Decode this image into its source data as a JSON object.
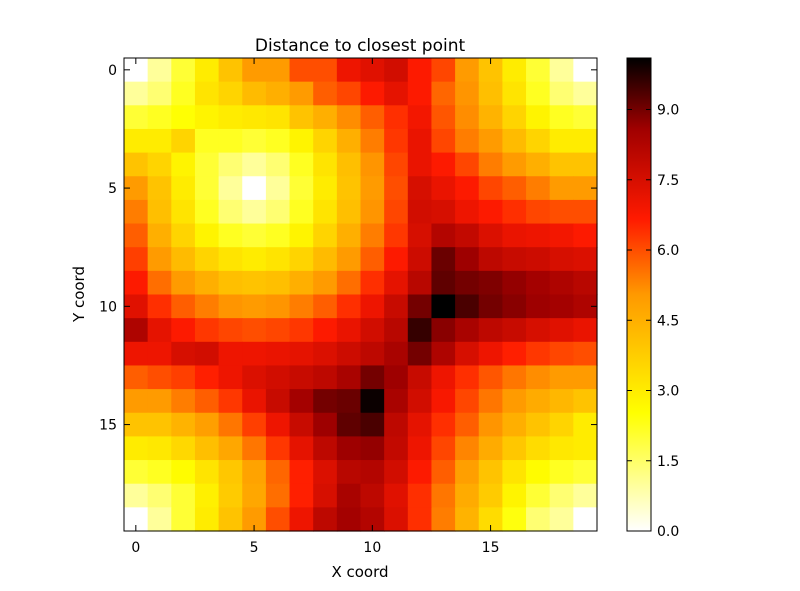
{
  "chart_data": {
    "type": "heatmap",
    "title": "Distance to closest point",
    "xlabel": "X coord",
    "ylabel": "Y coord",
    "rows": 20,
    "cols": 20,
    "xlim": [
      -0.5,
      19.5
    ],
    "ylim": [
      19.5,
      -0.5
    ],
    "x_ticks": [
      0,
      5,
      10,
      15
    ],
    "y_ticks": [
      0,
      5,
      10,
      15
    ],
    "colormap": "hot_r",
    "colorbar": {
      "vmin": 0.0,
      "vmax": 10.1,
      "ticks": [
        0.0,
        1.5,
        3.0,
        4.5,
        6.0,
        7.5,
        9.0
      ],
      "tick_labels": [
        "0.0",
        "1.5",
        "3.0",
        "4.5",
        "6.0",
        "7.5",
        "9.0"
      ]
    },
    "colormap_stops": [
      {
        "v": 0.0,
        "color": "#ffffff"
      },
      {
        "v": 0.25,
        "color": "#ffff00"
      },
      {
        "v": 0.5,
        "color": "#ff9900"
      },
      {
        "v": 0.66,
        "color": "#ff1a00"
      },
      {
        "v": 0.85,
        "color": "#a00000"
      },
      {
        "v": 1.0,
        "color": "#000000"
      }
    ],
    "grid": false,
    "values": [
      [
        0.0,
        1.0,
        2.0,
        3.0,
        4.0,
        5.0,
        5.0,
        6.0,
        6.0,
        7.0,
        7.3,
        7.6,
        6.7,
        6.1,
        5.0,
        4.0,
        3.0,
        2.0,
        1.0,
        0.0
      ],
      [
        1.0,
        1.4,
        2.2,
        3.2,
        3.6,
        4.2,
        4.5,
        5.0,
        5.8,
        6.1,
        6.7,
        7.2,
        6.7,
        5.7,
        5.1,
        4.1,
        3.2,
        2.2,
        1.4,
        1.0
      ],
      [
        2.0,
        2.2,
        2.5,
        2.8,
        3.0,
        3.1,
        3.2,
        4.0,
        4.5,
        5.2,
        5.8,
        6.4,
        6.9,
        5.9,
        5.2,
        4.4,
        3.6,
        2.8,
        2.2,
        2.0
      ],
      [
        3.0,
        3.0,
        3.6,
        2.2,
        2.2,
        2.0,
        2.2,
        2.8,
        3.6,
        4.5,
        5.4,
        6.3,
        7.1,
        6.1,
        5.4,
        5.0,
        4.2,
        3.6,
        3.0,
        3.0
      ],
      [
        4.0,
        3.6,
        2.8,
        2.0,
        1.4,
        1.0,
        1.4,
        2.2,
        3.2,
        4.1,
        5.1,
        6.1,
        7.1,
        6.7,
        6.1,
        5.4,
        5.0,
        4.5,
        4.0,
        4.0
      ],
      [
        5.0,
        4.0,
        3.0,
        2.0,
        1.0,
        0.0,
        1.0,
        2.0,
        3.0,
        4.0,
        5.0,
        6.0,
        7.5,
        7.1,
        6.7,
        6.1,
        5.8,
        5.4,
        5.0,
        5.0
      ],
      [
        5.4,
        4.1,
        3.2,
        2.2,
        1.4,
        1.0,
        1.4,
        2.2,
        3.2,
        4.1,
        5.1,
        6.1,
        7.6,
        7.5,
        7.0,
        6.7,
        6.4,
        6.1,
        6.0,
        6.0
      ],
      [
        5.8,
        4.5,
        3.6,
        2.8,
        2.2,
        2.0,
        2.2,
        2.8,
        3.6,
        4.5,
        5.4,
        6.3,
        7.5,
        8.2,
        7.9,
        7.4,
        7.1,
        7.0,
        6.9,
        6.7
      ],
      [
        6.2,
        5.0,
        4.2,
        3.6,
        3.2,
        3.0,
        3.2,
        3.6,
        4.2,
        5.0,
        5.8,
        6.7,
        7.7,
        9.1,
        8.6,
        8.0,
        7.8,
        7.7,
        7.5,
        7.4
      ],
      [
        6.7,
        5.6,
        5.0,
        4.5,
        4.1,
        4.0,
        4.1,
        4.5,
        5.0,
        5.6,
        6.4,
        7.2,
        8.1,
        9.2,
        9.0,
        8.9,
        8.7,
        8.5,
        8.3,
        8.1
      ],
      [
        7.3,
        6.4,
        5.8,
        5.4,
        5.1,
        5.0,
        5.1,
        5.4,
        5.8,
        6.4,
        7.0,
        7.8,
        9.0,
        10.1,
        9.4,
        9.0,
        8.8,
        8.6,
        8.5,
        8.3
      ],
      [
        8.3,
        7.2,
        6.7,
        6.3,
        6.1,
        6.0,
        6.1,
        6.3,
        6.7,
        7.1,
        7.6,
        8.1,
        9.6,
        8.8,
        8.4,
        8.0,
        7.8,
        7.5,
        7.3,
        7.1
      ],
      [
        7.0,
        7.0,
        7.5,
        7.6,
        7.0,
        7.0,
        7.1,
        7.2,
        7.4,
        7.7,
        8.0,
        8.4,
        9.0,
        8.3,
        7.5,
        7.0,
        6.6,
        6.3,
        6.1,
        6.0
      ],
      [
        5.8,
        6.0,
        6.2,
        6.6,
        7.0,
        7.4,
        7.6,
        7.8,
        8.0,
        8.4,
        9.0,
        8.6,
        7.8,
        7.0,
        6.4,
        5.9,
        5.5,
        5.2,
        5.0,
        5.0
      ],
      [
        5.0,
        5.0,
        5.4,
        5.8,
        6.3,
        7.1,
        7.8,
        8.5,
        9.0,
        9.1,
        10.0,
        8.4,
        7.6,
        6.8,
        6.1,
        5.5,
        5.0,
        4.6,
        4.3,
        4.0
      ],
      [
        4.0,
        4.0,
        4.4,
        4.9,
        5.5,
        6.2,
        7.0,
        7.8,
        8.6,
        9.2,
        9.4,
        8.0,
        7.2,
        6.4,
        5.8,
        5.1,
        4.5,
        4.0,
        3.6,
        3.0
      ],
      [
        3.0,
        3.1,
        3.5,
        4.1,
        4.7,
        5.5,
        6.3,
        7.2,
        8.0,
        8.6,
        8.7,
        7.9,
        7.0,
        6.1,
        5.3,
        4.6,
        3.9,
        3.4,
        3.1,
        3.0
      ],
      [
        2.0,
        2.2,
        2.6,
        3.2,
        3.9,
        4.8,
        5.7,
        6.6,
        7.4,
        8.1,
        8.2,
        7.6,
        6.7,
        5.8,
        4.9,
        4.0,
        3.2,
        2.6,
        2.2,
        2.0
      ],
      [
        1.0,
        1.4,
        2.0,
        2.9,
        3.8,
        4.7,
        5.6,
        6.6,
        7.5,
        8.4,
        8.0,
        7.3,
        6.4,
        5.5,
        4.6,
        3.8,
        2.8,
        2.0,
        1.4,
        1.0
      ],
      [
        0.0,
        1.0,
        2.0,
        3.0,
        4.0,
        5.0,
        6.0,
        7.0,
        8.0,
        8.5,
        8.2,
        7.4,
        6.4,
        5.4,
        4.4,
        3.4,
        2.4,
        1.4,
        1.0,
        0.0
      ]
    ]
  }
}
